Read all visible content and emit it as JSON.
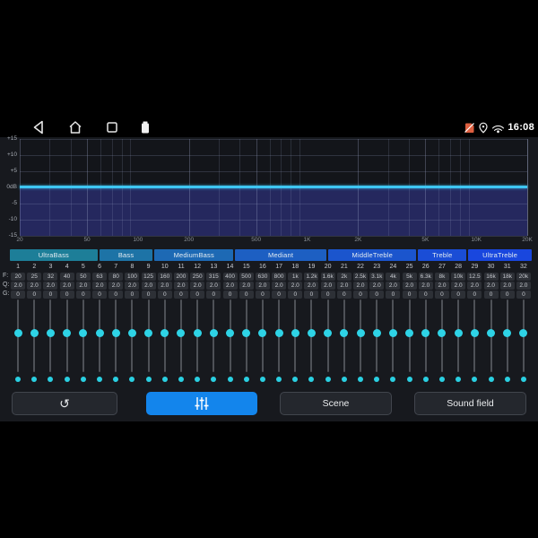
{
  "nav_bar": {
    "time": "16:08"
  },
  "icons": {
    "back": "back-triangle",
    "home": "home-outline",
    "recents": "square-outline",
    "battery": "battery-filled",
    "no_sim": "sim-slash-red",
    "location": "map-pin",
    "hotspot": "signal-arcs",
    "reset_glyph": "↺",
    "eq_glyph": "slider-bars"
  },
  "eq_graph": {
    "y_ticks": [
      "+15",
      "+10",
      "+5",
      "0dB",
      "-5",
      "-10",
      "-15"
    ],
    "x_tick_labels": [
      "20",
      "50",
      "100",
      "200",
      "500",
      "1K",
      "2K",
      "5K",
      "10K",
      "20K"
    ],
    "x_tick_freqs": [
      20,
      50,
      100,
      200,
      500,
      1000,
      2000,
      5000,
      10000,
      20000
    ],
    "zero_line_color": "#3ec6f2",
    "fill_color": "#25285e",
    "curve_db": 0
  },
  "bands": [
    {
      "label": "UltraBass",
      "channels": 6,
      "color": "#1d7e98"
    },
    {
      "label": "Bass",
      "channels": 4,
      "color": "#1d73a6"
    },
    {
      "label": "MediumBass",
      "channels": 4,
      "color": "#1d69b4"
    },
    {
      "label": "Mediant",
      "channels": 7,
      "color": "#1d5fc2"
    },
    {
      "label": "MiddleTreble",
      "channels": 5,
      "color": "#1b55cd"
    },
    {
      "label": "Treble",
      "channels": 3,
      "color": "#1a4dd6"
    },
    {
      "label": "UltraTreble",
      "channels": 3,
      "color": "#1947de"
    }
  ],
  "row_labels": {
    "f": "F:",
    "q": "Q:",
    "g": "G:"
  },
  "channels": [
    {
      "n": "1",
      "f": "20",
      "q": "2.0",
      "g": "0"
    },
    {
      "n": "2",
      "f": "25",
      "q": "2.0",
      "g": "0"
    },
    {
      "n": "3",
      "f": "32",
      "q": "2.0",
      "g": "0"
    },
    {
      "n": "4",
      "f": "40",
      "q": "2.0",
      "g": "0"
    },
    {
      "n": "5",
      "f": "50",
      "q": "2.0",
      "g": "0"
    },
    {
      "n": "6",
      "f": "63",
      "q": "2.0",
      "g": "0"
    },
    {
      "n": "7",
      "f": "80",
      "q": "2.0",
      "g": "0"
    },
    {
      "n": "8",
      "f": "100",
      "q": "2.0",
      "g": "0"
    },
    {
      "n": "9",
      "f": "125",
      "q": "2.0",
      "g": "0"
    },
    {
      "n": "10",
      "f": "160",
      "q": "2.0",
      "g": "0"
    },
    {
      "n": "11",
      "f": "200",
      "q": "2.0",
      "g": "0"
    },
    {
      "n": "12",
      "f": "250",
      "q": "2.0",
      "g": "0"
    },
    {
      "n": "13",
      "f": "315",
      "q": "2.0",
      "g": "0"
    },
    {
      "n": "14",
      "f": "400",
      "q": "2.0",
      "g": "0"
    },
    {
      "n": "15",
      "f": "500",
      "q": "2.0",
      "g": "0"
    },
    {
      "n": "16",
      "f": "630",
      "q": "2.0",
      "g": "0"
    },
    {
      "n": "17",
      "f": "800",
      "q": "2.0",
      "g": "0"
    },
    {
      "n": "18",
      "f": "1k",
      "q": "2.0",
      "g": "0"
    },
    {
      "n": "19",
      "f": "1.2k",
      "q": "2.0",
      "g": "0"
    },
    {
      "n": "20",
      "f": "1.6k",
      "q": "2.0",
      "g": "0"
    },
    {
      "n": "21",
      "f": "2k",
      "q": "2.0",
      "g": "0"
    },
    {
      "n": "22",
      "f": "2.5k",
      "q": "2.0",
      "g": "0"
    },
    {
      "n": "23",
      "f": "3.1k",
      "q": "2.0",
      "g": "0"
    },
    {
      "n": "24",
      "f": "4k",
      "q": "2.0",
      "g": "0"
    },
    {
      "n": "25",
      "f": "5k",
      "q": "2.0",
      "g": "0"
    },
    {
      "n": "26",
      "f": "6.3k",
      "q": "2.0",
      "g": "0"
    },
    {
      "n": "27",
      "f": "8k",
      "q": "2.0",
      "g": "0"
    },
    {
      "n": "28",
      "f": "10k",
      "q": "2.0",
      "g": "0"
    },
    {
      "n": "29",
      "f": "12.5",
      "q": "2.0",
      "g": "0"
    },
    {
      "n": "30",
      "f": "16k",
      "q": "2.0",
      "g": "0"
    },
    {
      "n": "31",
      "f": "18k",
      "q": "2.0",
      "g": "0"
    },
    {
      "n": "32",
      "f": "20k",
      "q": "2.0",
      "g": "0"
    }
  ],
  "sliders": {
    "value_db": 0,
    "knob_color": "#2ed3e6"
  },
  "buttons": {
    "scene": "Scene",
    "sound_field": "Sound field",
    "accent_color": "#1385ec"
  }
}
